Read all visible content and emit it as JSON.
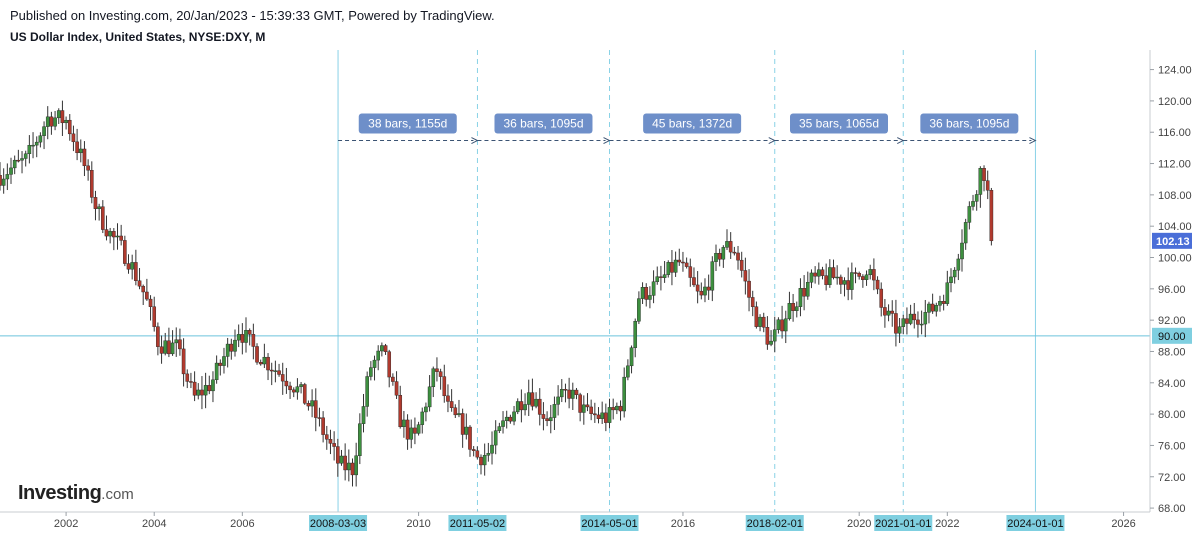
{
  "header": {
    "published": "Published on Investing.com, 20/Jan/2023 - 15:39:33 GMT, Powered by TradingView.",
    "symbol": "US Dollar Index, United States, NYSE:DXY, M"
  },
  "logo": {
    "main": "Investing",
    "suffix": ".com"
  },
  "colors": {
    "up": "#3d8f3f",
    "down": "#b03a2e",
    "wick": "#333333",
    "vline": "#89d2e6",
    "hline": "#6cc3dc",
    "range_label": "#6e8fc9",
    "date_tag": "#7fcfe0",
    "price_tag": "#4a6ed8"
  },
  "chart_data": {
    "type": "candlestick",
    "title": "US Dollar Index, United States, NYSE:DXY, M",
    "x_range": [
      2000.5,
      2026.6
    ],
    "ylim": [
      67.5,
      126.5
    ],
    "x_ticks": [
      "2002",
      "2004",
      "2006",
      "2010",
      "2016",
      "2020",
      "2022",
      "2026"
    ],
    "y_ticks": [
      "124.00",
      "120.00",
      "116.00",
      "112.00",
      "108.00",
      "104.00",
      "100.00",
      "96.00",
      "92.00",
      "88.00",
      "84.00",
      "80.00",
      "76.00",
      "72.00",
      "68.00"
    ],
    "vertical_markers": [
      {
        "date": "2008-03-03",
        "label": "2008-03-03",
        "style": "solid"
      },
      {
        "date": "2011-05-02",
        "label": "2011-05-02",
        "style": "dashed"
      },
      {
        "date": "2014-05-01",
        "label": "2014-05-01",
        "style": "dashed"
      },
      {
        "date": "2018-02-01",
        "label": "2018-02-01",
        "style": "dashed"
      },
      {
        "date": "2021-01-01",
        "label": "2021-01-01",
        "style": "dashed"
      },
      {
        "date": "2024-01-01",
        "label": "2024-01-01",
        "style": "solid"
      }
    ],
    "ranges": [
      {
        "from": "2008-03-03",
        "to": "2011-05-02",
        "label": "38 bars, 1155d"
      },
      {
        "from": "2011-05-02",
        "to": "2014-05-01",
        "label": "36 bars, 1095d"
      },
      {
        "from": "2014-05-01",
        "to": "2018-02-01",
        "label": "45 bars, 1372d"
      },
      {
        "from": "2018-02-01",
        "to": "2021-01-01",
        "label": "35 bars, 1065d"
      },
      {
        "from": "2021-01-01",
        "to": "2024-01-01",
        "label": "36 bars, 1095d"
      }
    ],
    "horizontal_line": {
      "value": 90.0,
      "label": "90.00"
    },
    "last_price": {
      "value": 102.13,
      "label": "102.13"
    },
    "close_path": [
      [
        2000.5,
        110.5
      ],
      [
        2001.1,
        112.5
      ],
      [
        2001.6,
        118.0
      ],
      [
        2002.0,
        117.5
      ],
      [
        2002.4,
        112.0
      ],
      [
        2002.7,
        106.0
      ],
      [
        2003.0,
        103.0
      ],
      [
        2003.4,
        100.0
      ],
      [
        2003.8,
        95.0
      ],
      [
        2004.1,
        89.0
      ],
      [
        2004.5,
        88.5
      ],
      [
        2004.9,
        82.0
      ],
      [
        2005.3,
        84.0
      ],
      [
        2005.9,
        91.0
      ],
      [
        2006.3,
        88.0
      ],
      [
        2006.8,
        85.5
      ],
      [
        2007.2,
        83.5
      ],
      [
        2007.6,
        80.5
      ],
      [
        2007.9,
        77.0
      ],
      [
        2008.2,
        73.5
      ],
      [
        2008.5,
        73.0
      ],
      [
        2008.9,
        86.0
      ],
      [
        2009.2,
        88.0
      ],
      [
        2009.6,
        79.0
      ],
      [
        2009.9,
        76.5
      ],
      [
        2010.4,
        86.0
      ],
      [
        2010.7,
        80.0
      ],
      [
        2011.0,
        78.5
      ],
      [
        2011.3,
        74.5
      ],
      [
        2011.6,
        75.0
      ],
      [
        2012.0,
        79.5
      ],
      [
        2012.5,
        83.0
      ],
      [
        2012.9,
        79.5
      ],
      [
        2013.4,
        83.0
      ],
      [
        2013.8,
        80.0
      ],
      [
        2014.3,
        79.5
      ],
      [
        2014.6,
        81.5
      ],
      [
        2015.0,
        95.0
      ],
      [
        2015.4,
        96.5
      ],
      [
        2015.9,
        99.5
      ],
      [
        2016.4,
        94.5
      ],
      [
        2016.9,
        101.5
      ],
      [
        2017.2,
        101.0
      ],
      [
        2017.6,
        93.0
      ],
      [
        2018.0,
        89.0
      ],
      [
        2018.4,
        93.5
      ],
      [
        2018.9,
        97.0
      ],
      [
        2019.4,
        97.5
      ],
      [
        2019.9,
        97.0
      ],
      [
        2020.2,
        99.0
      ],
      [
        2020.5,
        93.5
      ],
      [
        2020.9,
        90.5
      ],
      [
        2021.2,
        92.5
      ],
      [
        2021.6,
        93.0
      ],
      [
        2022.0,
        96.0
      ],
      [
        2022.4,
        104.0
      ],
      [
        2022.8,
        112.0
      ],
      [
        2022.92,
        108.0
      ],
      [
        2023.05,
        102.13
      ]
    ]
  }
}
